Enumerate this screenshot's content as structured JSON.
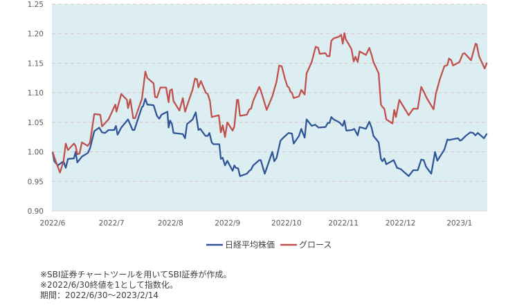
{
  "chart_data": {
    "type": "line",
    "title": "",
    "xlabel": "",
    "ylabel": "",
    "x_unit": "days since 2022/6/30",
    "xlim": [
      0,
      229
    ],
    "ylim": [
      0.9,
      1.25
    ],
    "yticks": [
      0.9,
      0.95,
      1.0,
      1.05,
      1.1,
      1.15,
      1.2,
      1.25
    ],
    "ytick_labels": [
      "0.90",
      "0.95",
      "1.00",
      "1.05",
      "1.10",
      "1.15",
      "1.20",
      "1.25"
    ],
    "xticks": [
      {
        "label": "2022/6",
        "day": 0
      },
      {
        "label": "2022/7",
        "day": 31
      },
      {
        "label": "2022/8",
        "day": 62
      },
      {
        "label": "2022/9",
        "day": 92
      },
      {
        "label": "2022/10",
        "day": 123
      },
      {
        "label": "2022/11",
        "day": 153
      },
      {
        "label": "2022/12",
        "day": 183
      },
      {
        "label": "2023/1",
        "day": 214
      }
    ],
    "grid": "horizontal-dashed",
    "background": "#DDEEF3",
    "legend_position": "bottom-center",
    "series": [
      {
        "name": "日経平均株価",
        "color": "#2F5597",
        "points": [
          [
            0,
            1.0
          ],
          [
            0.9,
            0.984
          ],
          [
            2.7,
            0.977
          ],
          [
            5.7,
            0.984
          ],
          [
            6.9,
            0.973
          ],
          [
            8.1,
            0.988
          ],
          [
            11.2,
            0.989
          ],
          [
            12.1,
            1.0
          ],
          [
            13,
            0.982
          ],
          [
            15.4,
            0.992
          ],
          [
            18.5,
            0.998
          ],
          [
            19.7,
            1.006
          ],
          [
            21.9,
            1.035
          ],
          [
            24.5,
            1.041
          ],
          [
            26,
            1.033
          ],
          [
            27.6,
            1.032
          ],
          [
            29.4,
            1.037
          ],
          [
            32.4,
            1.037
          ],
          [
            33.3,
            1.044
          ],
          [
            34.2,
            1.029
          ],
          [
            36.1,
            1.041
          ],
          [
            39.7,
            1.055
          ],
          [
            42.1,
            1.037
          ],
          [
            43,
            1.037
          ],
          [
            47,
            1.076
          ],
          [
            47.6,
            1.077
          ],
          [
            48.8,
            1.09
          ],
          [
            49.8,
            1.08
          ],
          [
            53.1,
            1.079
          ],
          [
            54.9,
            1.061
          ],
          [
            56.1,
            1.056
          ],
          [
            57.3,
            1.063
          ],
          [
            60.4,
            1.068
          ],
          [
            61,
            1.041
          ],
          [
            61.8,
            1.053
          ],
          [
            62.8,
            1.047
          ],
          [
            63.6,
            1.032
          ],
          [
            68.5,
            1.03
          ],
          [
            69.7,
            1.023
          ],
          [
            70.7,
            1.047
          ],
          [
            73.7,
            1.055
          ],
          [
            75.3,
            1.067
          ],
          [
            76.7,
            1.037
          ],
          [
            77.7,
            1.039
          ],
          [
            80.4,
            1.027
          ],
          [
            81.6,
            1.027
          ],
          [
            82.5,
            1.032
          ],
          [
            83.7,
            1.016
          ],
          [
            84.6,
            1.013
          ],
          [
            87.7,
            1.013
          ],
          [
            88.5,
            0.988
          ],
          [
            89.5,
            0.99
          ],
          [
            90.7,
            0.977
          ],
          [
            91.9,
            0.985
          ],
          [
            94.7,
            0.968
          ],
          [
            95.6,
            0.977
          ],
          [
            96.4,
            0.973
          ],
          [
            97.6,
            0.972
          ],
          [
            98.6,
            0.959
          ],
          [
            102.2,
            0.963
          ],
          [
            103.5,
            0.968
          ],
          [
            104.4,
            0.97
          ],
          [
            105.5,
            0.977
          ],
          [
            108.7,
            0.986
          ],
          [
            109.5,
            0.986
          ],
          [
            111.6,
            0.963
          ],
          [
            115.6,
            1.0
          ],
          [
            116.6,
            0.984
          ],
          [
            117.8,
            0.99
          ],
          [
            119.9,
            1.019
          ],
          [
            121.1,
            1.023
          ],
          [
            124.1,
            1.032
          ],
          [
            125.9,
            1.031
          ],
          [
            126.8,
            1.014
          ],
          [
            129.6,
            1.027
          ],
          [
            130.8,
            1.039
          ],
          [
            132.6,
            1.024
          ],
          [
            133.6,
            1.055
          ],
          [
            136.3,
            1.044
          ],
          [
            138.1,
            1.046
          ],
          [
            139.9,
            1.041
          ],
          [
            143.5,
            1.042
          ],
          [
            144.8,
            1.049
          ],
          [
            145.7,
            1.049
          ],
          [
            146.6,
            1.059
          ],
          [
            147.8,
            1.055
          ],
          [
            150.8,
            1.05
          ],
          [
            152.6,
            1.044
          ],
          [
            153.5,
            1.053
          ],
          [
            154.5,
            1.036
          ],
          [
            157.5,
            1.037
          ],
          [
            158.7,
            1.039
          ],
          [
            160.5,
            1.028
          ],
          [
            161.5,
            1.042
          ],
          [
            164.8,
            1.039
          ],
          [
            166.6,
            1.051
          ],
          [
            167.8,
            1.041
          ],
          [
            168.8,
            1.027
          ],
          [
            171.5,
            1.016
          ],
          [
            172.7,
            0.988
          ],
          [
            173.5,
            0.984
          ],
          [
            174.5,
            0.989
          ],
          [
            175.5,
            0.979
          ],
          [
            179.4,
            0.986
          ],
          [
            181.2,
            0.973
          ],
          [
            183,
            0.971
          ],
          [
            187.3,
            0.959
          ],
          [
            189.7,
            0.969
          ],
          [
            192.1,
            0.969
          ],
          [
            193.9,
            0.987
          ],
          [
            195.2,
            0.986
          ],
          [
            196.4,
            0.975
          ],
          [
            199.2,
            0.963
          ],
          [
            201.2,
            1.0
          ],
          [
            202.4,
            0.985
          ],
          [
            206.1,
            1.004
          ],
          [
            207.7,
            1.021
          ],
          [
            208.5,
            1.02
          ],
          [
            211.5,
            1.022
          ],
          [
            213.3,
            1.023
          ],
          [
            214.3,
            1.019
          ],
          [
            215.1,
            1.02
          ],
          [
            217.3,
            1.027
          ],
          [
            219.7,
            1.033
          ],
          [
            221.2,
            1.032
          ],
          [
            222.4,
            1.028
          ],
          [
            223.7,
            1.032
          ],
          [
            226.9,
            1.023
          ],
          [
            228.5,
            1.031
          ]
        ]
      },
      {
        "name": "グロース",
        "color": "#C0504D",
        "points": [
          [
            0,
            1.0
          ],
          [
            1.2,
            0.988
          ],
          [
            3.9,
            0.965
          ],
          [
            5.7,
            0.984
          ],
          [
            6.9,
            1.014
          ],
          [
            8.1,
            1.003
          ],
          [
            11.2,
            1.014
          ],
          [
            12.1,
            1.01
          ],
          [
            13,
            0.996
          ],
          [
            14.2,
            0.997
          ],
          [
            15.4,
            1.016
          ],
          [
            18.5,
            1.01
          ],
          [
            19.7,
            1.016
          ],
          [
            21.9,
            1.064
          ],
          [
            25.1,
            1.063
          ],
          [
            26,
            1.043
          ],
          [
            29.4,
            1.055
          ],
          [
            33,
            1.08
          ],
          [
            33.6,
            1.068
          ],
          [
            36.1,
            1.098
          ],
          [
            39.1,
            1.088
          ],
          [
            39.7,
            1.074
          ],
          [
            40.9,
            1.089
          ],
          [
            42.4,
            1.057
          ],
          [
            43.4,
            1.057
          ],
          [
            47,
            1.09
          ],
          [
            48.8,
            1.136
          ],
          [
            49.8,
            1.125
          ],
          [
            53.1,
            1.116
          ],
          [
            53.9,
            1.093
          ],
          [
            54.9,
            1.092
          ],
          [
            56.7,
            1.109
          ],
          [
            59.7,
            1.109
          ],
          [
            61,
            1.084
          ],
          [
            61.8,
            1.104
          ],
          [
            62.8,
            1.106
          ],
          [
            63.6,
            1.086
          ],
          [
            66.7,
            1.07
          ],
          [
            68.5,
            1.091
          ],
          [
            69.7,
            1.068
          ],
          [
            73.7,
            1.106
          ],
          [
            74.9,
            1.124
          ],
          [
            75.9,
            1.123
          ],
          [
            76.7,
            1.109
          ],
          [
            78,
            1.12
          ],
          [
            80.6,
            1.1
          ],
          [
            81.6,
            1.098
          ],
          [
            82.8,
            1.086
          ],
          [
            83.7,
            1.059
          ],
          [
            87.4,
            1.062
          ],
          [
            88.5,
            1.033
          ],
          [
            89.5,
            1.045
          ],
          [
            90.7,
            1.025
          ],
          [
            91.9,
            1.05
          ],
          [
            94.7,
            1.036
          ],
          [
            95.6,
            1.043
          ],
          [
            97,
            1.088
          ],
          [
            97.6,
            1.088
          ],
          [
            98.6,
            1.061
          ],
          [
            102.2,
            1.063
          ],
          [
            103.5,
            1.072
          ],
          [
            104.4,
            1.073
          ],
          [
            105.5,
            1.086
          ],
          [
            108.7,
            1.11
          ],
          [
            109.5,
            1.104
          ],
          [
            112.6,
            1.071
          ],
          [
            115.6,
            1.094
          ],
          [
            117.8,
            1.119
          ],
          [
            119.2,
            1.146
          ],
          [
            120.5,
            1.145
          ],
          [
            122.3,
            1.123
          ],
          [
            123.5,
            1.111
          ],
          [
            124.3,
            1.109
          ],
          [
            125.1,
            1.102
          ],
          [
            125.9,
            1.1
          ],
          [
            126.8,
            1.091
          ],
          [
            129.6,
            1.094
          ],
          [
            130.8,
            1.105
          ],
          [
            132.6,
            1.097
          ],
          [
            133.6,
            1.133
          ],
          [
            136.3,
            1.152
          ],
          [
            138.4,
            1.178
          ],
          [
            139.7,
            1.176
          ],
          [
            140.5,
            1.166
          ],
          [
            143.5,
            1.167
          ],
          [
            144.5,
            1.162
          ],
          [
            145.7,
            1.162
          ],
          [
            146.6,
            1.188
          ],
          [
            147.8,
            1.192
          ],
          [
            150.6,
            1.195
          ],
          [
            151.8,
            1.198
          ],
          [
            152.6,
            1.183
          ],
          [
            153.5,
            1.201
          ],
          [
            154.2,
            1.191
          ],
          [
            157.2,
            1.174
          ],
          [
            158.4,
            1.153
          ],
          [
            159.3,
            1.161
          ],
          [
            160.5,
            1.152
          ],
          [
            161.5,
            1.17
          ],
          [
            164.8,
            1.164
          ],
          [
            166.6,
            1.176
          ],
          [
            167.8,
            1.164
          ],
          [
            168.8,
            1.152
          ],
          [
            171.5,
            1.133
          ],
          [
            172.7,
            1.08
          ],
          [
            173.5,
            1.076
          ],
          [
            174.5,
            1.073
          ],
          [
            175.5,
            1.055
          ],
          [
            178.8,
            1.048
          ],
          [
            179.7,
            1.071
          ],
          [
            180.6,
            1.059
          ],
          [
            182.4,
            1.088
          ],
          [
            187.3,
            1.062
          ],
          [
            189.7,
            1.073
          ],
          [
            192.1,
            1.073
          ],
          [
            193.9,
            1.11
          ],
          [
            195.2,
            1.102
          ],
          [
            196.8,
            1.091
          ],
          [
            200.4,
            1.072
          ],
          [
            201.6,
            1.098
          ],
          [
            203.7,
            1.123
          ],
          [
            206.1,
            1.145
          ],
          [
            207.7,
            1.147
          ],
          [
            208.5,
            1.158
          ],
          [
            209.7,
            1.155
          ],
          [
            210.6,
            1.146
          ],
          [
            214,
            1.152
          ],
          [
            215.8,
            1.166
          ],
          [
            216.7,
            1.167
          ],
          [
            220.1,
            1.155
          ],
          [
            222.5,
            1.183
          ],
          [
            223.1,
            1.182
          ],
          [
            224.3,
            1.162
          ],
          [
            227.3,
            1.141
          ],
          [
            228.5,
            1.151
          ]
        ]
      }
    ],
    "legend": [
      "日経平均株価",
      "グロース"
    ]
  },
  "notes": [
    "※SBI証券チャートツールを用いてSBI証券が作成。",
    "※2022/6/30終値を1として指数化。",
    "期間：2022/6/30～2023/2/14"
  ]
}
